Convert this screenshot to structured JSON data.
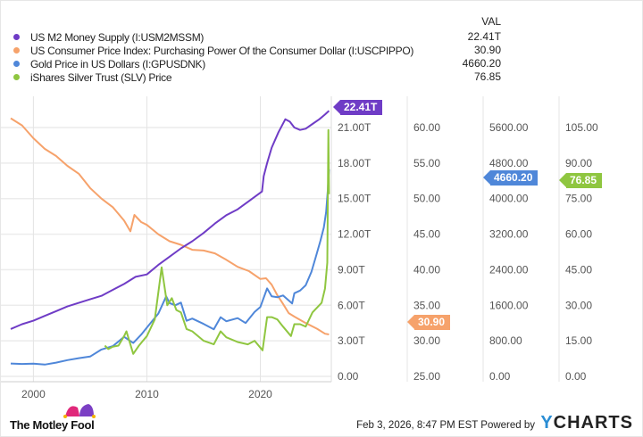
{
  "legend": {
    "header": "VAL",
    "items": [
      {
        "label": "US M2 Money Supply (I:USM2MSSM)",
        "value": "22.41T",
        "color": "#6f3cc6"
      },
      {
        "label": "US Consumer Price Index: Purchasing Power Of the Consumer Dollar (I:USCPIPPO)",
        "value": "30.90",
        "color": "#f6a26b"
      },
      {
        "label": "Gold Price in US Dollars (I:GPUSDNK)",
        "value": "4660.20",
        "color": "#4f87d9"
      },
      {
        "label": "iShares Silver Trust (SLV) Price",
        "value": "76.85",
        "color": "#8fc640"
      }
    ]
  },
  "chart_data": {
    "type": "line",
    "grid": true,
    "xlim": [
      1998,
      2026.1
    ],
    "x_ticks": [
      "2000",
      "2010",
      "2020"
    ],
    "axes": [
      {
        "series": 0,
        "ylim": [
          0,
          21
        ],
        "ticks": [
          "0.00",
          "3.00T",
          "6.00T",
          "9.00T",
          "12.00T",
          "15.00T",
          "18.00T",
          "21.00T"
        ]
      },
      {
        "series": 1,
        "ylim": [
          25,
          60
        ],
        "ticks": [
          "25.00",
          "30.00",
          "35.00",
          "40.00",
          "45.00",
          "50.00",
          "55.00",
          "60.00"
        ]
      },
      {
        "series": 2,
        "ylim": [
          0,
          5600
        ],
        "ticks": [
          "0.00",
          "800.00",
          "1600.00",
          "2400.00",
          "3200.00",
          "4000.00",
          "4800.00",
          "5600.00"
        ]
      },
      {
        "series": 3,
        "ylim": [
          0,
          105
        ],
        "ticks": [
          "0.00",
          "15.00",
          "30.00",
          "45.00",
          "60.00",
          "75.00",
          "90.00",
          "105.00"
        ]
      }
    ],
    "series": [
      {
        "name": "US M2 Money Supply (I:USM2MSSM)",
        "last_label": "22.41T",
        "x": [
          1998,
          1999,
          2000,
          2001,
          2002,
          2003,
          2004,
          2005,
          2006,
          2007,
          2008,
          2009,
          2010,
          2011,
          2012,
          2013,
          2014,
          2015,
          2016,
          2017,
          2018,
          2019,
          2020.15,
          2020.3,
          2020.6,
          2021,
          2021.6,
          2022.2,
          2022.6,
          2023,
          2023.5,
          2024,
          2024.6,
          2025.2,
          2025.7,
          2026.05
        ],
        "y": [
          4.0,
          4.4,
          4.7,
          5.1,
          5.5,
          5.9,
          6.2,
          6.5,
          6.8,
          7.3,
          7.8,
          8.4,
          8.6,
          9.4,
          10.1,
          10.8,
          11.4,
          12.1,
          12.9,
          13.6,
          14.1,
          14.8,
          15.6,
          16.9,
          18.0,
          19.3,
          20.6,
          21.7,
          21.5,
          21.0,
          20.8,
          20.9,
          21.3,
          21.7,
          22.1,
          22.41
        ]
      },
      {
        "name": "US Consumer Price Index: Purchasing Power Of the Consumer Dollar (I:USCPIPPO)",
        "last_label": "30.90",
        "x": [
          1998,
          1999,
          2000,
          2001,
          2002,
          2003,
          2004,
          2005,
          2006,
          2007,
          2008,
          2008.55,
          2008.9,
          2009.5,
          2010,
          2011,
          2012,
          2013,
          2014,
          2015,
          2016,
          2017,
          2018,
          2019,
          2020,
          2020.5,
          2021,
          2021.5,
          2022,
          2022.5,
          2023,
          2024,
          2025,
          2025.7,
          2026.05
        ],
        "y": [
          61.3,
          60.3,
          58.5,
          57.0,
          56.0,
          54.6,
          53.5,
          51.5,
          50.0,
          48.8,
          46.9,
          45.4,
          47.7,
          46.7,
          46.3,
          45.0,
          44.0,
          43.5,
          42.8,
          42.7,
          42.3,
          41.4,
          40.4,
          39.8,
          38.7,
          38.8,
          37.9,
          36.4,
          35.2,
          33.9,
          33.4,
          32.5,
          31.7,
          31.0,
          30.9
        ]
      },
      {
        "name": "Gold Price in US Dollars (I:GPUSDNK)",
        "last_label": "4660.20",
        "x": [
          1998,
          1999,
          2000,
          2001,
          2002,
          2003,
          2004,
          2005,
          2006,
          2007,
          2008,
          2008.8,
          2009.5,
          2010,
          2011,
          2011.7,
          2012,
          2012.5,
          2013,
          2013.5,
          2014,
          2015,
          2015.9,
          2016.5,
          2017,
          2018,
          2018.7,
          2019.5,
          2020,
          2020.6,
          2021,
          2021.5,
          2022,
          2022.8,
          2023,
          2023.5,
          2024,
          2024.5,
          2024.9,
          2025.3,
          2025.6,
          2025.8,
          2025.95,
          2026.05
        ],
        "y": [
          290,
          280,
          285,
          265,
          310,
          365,
          410,
          445,
          605,
          680,
          890,
          750,
          940,
          1100,
          1410,
          1800,
          1650,
          1600,
          1660,
          1250,
          1300,
          1180,
          1060,
          1330,
          1240,
          1310,
          1200,
          1450,
          1560,
          1980,
          1800,
          1780,
          1820,
          1640,
          1870,
          1930,
          2050,
          2350,
          2700,
          3050,
          3350,
          3700,
          4200,
          4660.2
        ]
      },
      {
        "name": "iShares Silver Trust (SLV) Price",
        "last_label": "76.85",
        "x": [
          2006.3,
          2006.6,
          2007,
          2007.5,
          2008,
          2008.2,
          2008.8,
          2009.3,
          2010,
          2010.7,
          2011.3,
          2011.8,
          2012.2,
          2012.6,
          2013,
          2013.5,
          2014,
          2015,
          2015.9,
          2016.5,
          2017,
          2018,
          2018.9,
          2019.5,
          2020.2,
          2020.6,
          2021,
          2021.5,
          2022,
          2022.7,
          2023,
          2023.5,
          2024,
          2024.6,
          2025,
          2025.4,
          2025.7,
          2025.9,
          2026.0,
          2026.05
        ],
        "y": [
          13,
          11.5,
          12.5,
          13,
          17,
          19,
          9.5,
          13,
          17,
          24,
          46,
          30,
          33,
          28,
          27,
          20,
          19,
          15,
          13.5,
          19,
          16.5,
          14.5,
          13.5,
          15,
          11,
          25,
          25,
          24,
          21,
          17,
          22,
          22,
          21,
          27,
          29,
          31,
          37,
          48,
          104,
          76.85
        ]
      }
    ]
  },
  "footer": {
    "brand": "The Motley Fool",
    "timestamp": "Feb 3, 2026, 8:47 PM EST Powered by",
    "ycharts_y": "Y",
    "ycharts_rest": "CHARTS"
  }
}
